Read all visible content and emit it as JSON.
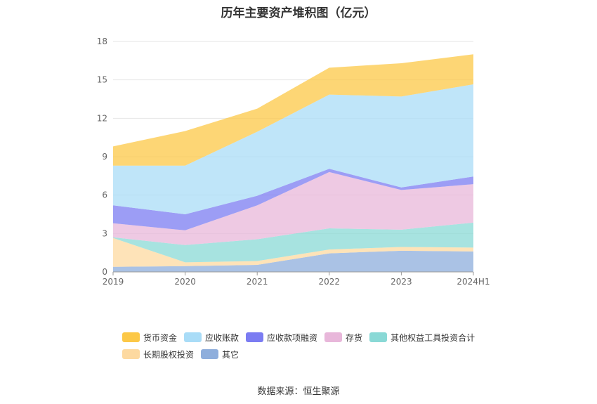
{
  "chart_data": {
    "type": "area",
    "stacked": true,
    "title": "历年主要资产堆积图（亿元）",
    "categories": [
      "2019",
      "2020",
      "2021",
      "2022",
      "2023",
      "2024H1"
    ],
    "ylim": [
      0,
      18
    ],
    "yticks": [
      0,
      3,
      6,
      9,
      12,
      15,
      18
    ],
    "grid": true,
    "legend_position": "bottom",
    "series": [
      {
        "name": "其它",
        "color": "#8eaedc",
        "values": [
          0.4,
          0.45,
          0.55,
          1.45,
          1.65,
          1.6
        ]
      },
      {
        "name": "长期股权投资",
        "color": "#fdd9a0",
        "values": [
          2.25,
          0.3,
          0.3,
          0.3,
          0.3,
          0.3
        ]
      },
      {
        "name": "其他权益工具投资合计",
        "color": "#8ad9d6",
        "values": [
          0.05,
          1.35,
          1.7,
          1.65,
          1.35,
          1.95
        ]
      },
      {
        "name": "存货",
        "color": "#e8b7da",
        "values": [
          1.1,
          1.15,
          2.65,
          4.4,
          3.1,
          3.0
        ]
      },
      {
        "name": "应收款项融资",
        "color": "#7b7cf2",
        "values": [
          1.4,
          1.25,
          0.75,
          0.25,
          0.2,
          0.6
        ]
      },
      {
        "name": "应收账款",
        "color": "#a9dcf7",
        "values": [
          3.1,
          3.8,
          5.0,
          5.8,
          7.1,
          7.2
        ]
      },
      {
        "name": "货币资金",
        "color": "#fcc847",
        "values": [
          1.5,
          2.7,
          1.8,
          2.1,
          2.6,
          2.35
        ]
      }
    ]
  },
  "legend": {
    "items": [
      {
        "label": "货币资金",
        "color": "#fcc847"
      },
      {
        "label": "应收账款",
        "color": "#a9dcf7"
      },
      {
        "label": "应收款项融资",
        "color": "#7b7cf2"
      },
      {
        "label": "存货",
        "color": "#e8b7da"
      },
      {
        "label": "其他权益工具投资合计",
        "color": "#8ad9d6"
      },
      {
        "label": "长期股权投资",
        "color": "#fdd9a0"
      },
      {
        "label": "其它",
        "color": "#8eaedc"
      }
    ]
  },
  "source": "数据来源：恒生聚源"
}
